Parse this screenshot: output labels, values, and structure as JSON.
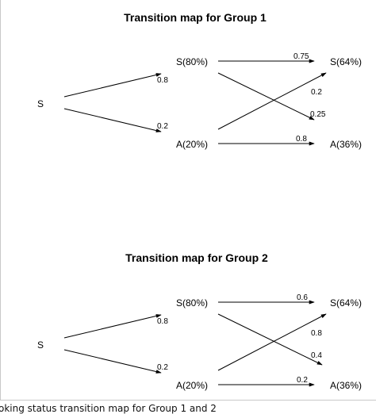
{
  "groups": [
    {
      "title": "Transition map for Group 1",
      "start": "S",
      "mid_s": "S(80%)",
      "mid_a": "A(20%)",
      "end_s": "S(64%)",
      "end_a": "A(36%)",
      "p_start_to_s": "0.8",
      "p_start_to_a": "0.2",
      "p_s_to_s": "0.75",
      "p_a_to_s": "0.2",
      "p_s_to_a": "0.25",
      "p_a_to_a": "0.8"
    },
    {
      "title": "Transition map for Group 2",
      "start": "S",
      "mid_s": "S(80%)",
      "mid_a": "A(20%)",
      "end_s": "S(64%)",
      "end_a": "A(36%)",
      "p_start_to_s": "0.8",
      "p_start_to_a": "0.2",
      "p_s_to_s": "0.6",
      "p_a_to_s": "0.8",
      "p_s_to_a": "0.4",
      "p_a_to_a": "0.2"
    }
  ],
  "caption": "oking status transition map for Group 1 and 2"
}
